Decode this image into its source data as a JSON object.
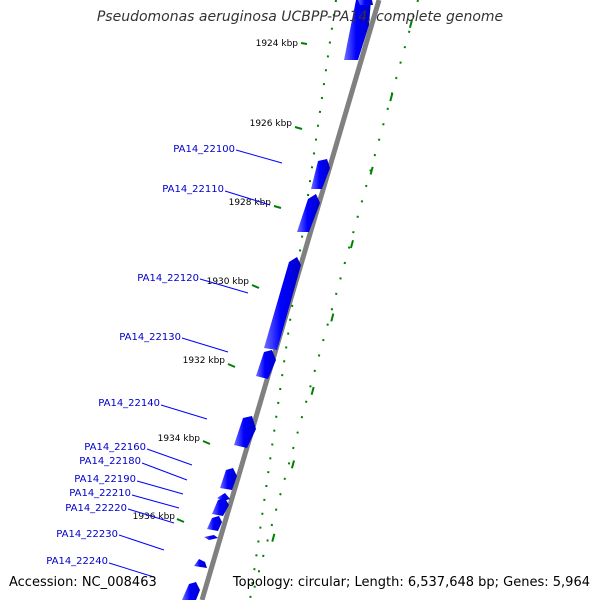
{
  "title": "Pseudomonas aeruginosa UCBPP-PA14, complete genome",
  "footer": {
    "accession": "Accession: NC_008463",
    "summary": "Topology: circular; Length: 6,537,648 bp; Genes: 5,964"
  },
  "colors": {
    "gene": "#0000ff",
    "gene_label": "#0000cc",
    "tick": "#008000",
    "backbone": "#808080",
    "scale_text": "#000000"
  },
  "scale": {
    "unit": "kbp",
    "labels": [
      "1924 kbp",
      "1926 kbp",
      "1928 kbp",
      "1930 kbp",
      "1932 kbp",
      "1934 kbp",
      "1936 kbp"
    ]
  },
  "genes": [
    {
      "name": "PA14_22100"
    },
    {
      "name": "PA14_22110"
    },
    {
      "name": "PA14_22120"
    },
    {
      "name": "PA14_22130"
    },
    {
      "name": "PA14_22140"
    },
    {
      "name": "PA14_22160"
    },
    {
      "name": "PA14_22180"
    },
    {
      "name": "PA14_22190"
    },
    {
      "name": "PA14_22210"
    },
    {
      "name": "PA14_22220"
    },
    {
      "name": "PA14_22230"
    },
    {
      "name": "PA14_22240"
    }
  ]
}
